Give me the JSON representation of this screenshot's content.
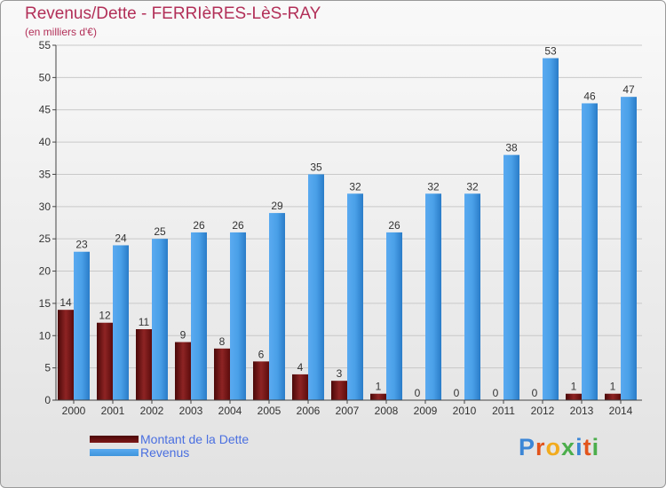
{
  "header": {
    "title": "Revenus/Dette - FERRIèRES-LèS-RAY",
    "subtitle": "(en milliers d'€)"
  },
  "colors": {
    "debt": "#7d1818",
    "revenue": "#3f95dc",
    "title": "#b22f58",
    "legend_text": "#4a6fe0"
  },
  "chart_data": {
    "type": "bar",
    "title": "Revenus/Dette - FERRIèRES-LèS-RAY",
    "subtitle": "(en milliers d'€)",
    "xlabel": "",
    "ylabel": "",
    "ylim": [
      0,
      55
    ],
    "yticks": [
      0,
      5,
      10,
      15,
      20,
      25,
      30,
      35,
      40,
      45,
      50,
      55
    ],
    "grid": true,
    "legend_position": "bottom-left",
    "categories": [
      "2000",
      "2001",
      "2002",
      "2003",
      "2004",
      "2005",
      "2006",
      "2007",
      "2008",
      "2009",
      "2010",
      "2011",
      "2012",
      "2013",
      "2014"
    ],
    "series": [
      {
        "name": "Montant de la Dette",
        "color": "#7d1818",
        "values": [
          14,
          12,
          11,
          9,
          8,
          6,
          4,
          3,
          1,
          0,
          0,
          0,
          0,
          1,
          1
        ]
      },
      {
        "name": "Revenus",
        "color": "#3f95dc",
        "values": [
          23,
          24,
          25,
          26,
          26,
          29,
          35,
          32,
          26,
          32,
          32,
          38,
          53,
          46,
          47
        ]
      }
    ]
  },
  "legend": {
    "items": [
      {
        "label": "Montant de la Dette"
      },
      {
        "label": "Revenus"
      }
    ]
  },
  "brand": {
    "letters": [
      {
        "ch": "P",
        "color": "#3c86d6"
      },
      {
        "ch": "r",
        "color": "#e2541c"
      },
      {
        "ch": "o",
        "color": "#f2ab1d"
      },
      {
        "ch": "x",
        "color": "#4cae4c"
      },
      {
        "ch": "i",
        "color": "#3c86d6"
      },
      {
        "ch": "t",
        "color": "#e2541c"
      },
      {
        "ch": "i",
        "color": "#4cae4c"
      }
    ]
  }
}
